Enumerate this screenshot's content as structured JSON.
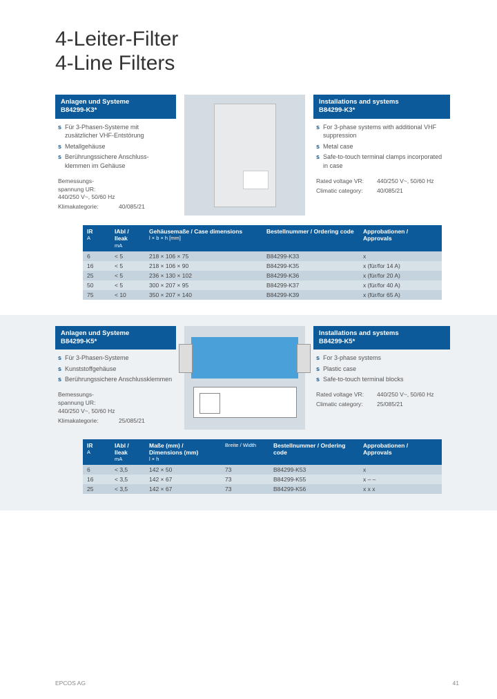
{
  "title": {
    "line1": "4-Leiter-Filter",
    "line2": "4-Line Filters"
  },
  "s1": {
    "deHdr": {
      "l1": "Anlagen und Systeme",
      "l2": "B84299-K3*"
    },
    "enHdr": {
      "l1": "Installations and systems",
      "l2": "B84299-K3*"
    },
    "deBul": [
      "Für 3-Phasen-Systeme mit zusätzlicher VHF-Entstörung",
      "Metallgehäuse",
      "Berührungssichere Anschluss-klemmen im Gehäuse"
    ],
    "enBul": [
      "For 3-phase systems with additional VHF suppression",
      "Metal case",
      "Safe-to-touch terminal clamps incorporated in case"
    ],
    "deSpec": [
      {
        "l": "Bemessungs-spannung UR:",
        "v": "440/250 V~, 50/60 Hz"
      },
      {
        "l": "Klimakategorie:",
        "v": "40/085/21"
      }
    ],
    "enSpec": [
      {
        "l": "Rated voltage VR:",
        "v": "440/250 V~, 50/60 Hz"
      },
      {
        "l": "Climatic category:",
        "v": "40/085/21"
      }
    ]
  },
  "t1": {
    "cols": [
      {
        "h": "IR",
        "s": "A",
        "w": "40"
      },
      {
        "h": "IAbl / Ileak",
        "s": "mA",
        "w": "50"
      },
      {
        "h": "Gehäusemaße / Case dimensions",
        "s": "l × b × h [mm]",
        "w": "170"
      },
      {
        "h": "Bestellnummer / Ordering code",
        "s": "",
        "w": "140"
      },
      {
        "h": "Approbationen / Approvals",
        "s": "",
        "w": "120"
      }
    ],
    "rows": [
      [
        "6",
        "< 5",
        "218 × 106 × 75",
        "B84299-K33",
        "x"
      ],
      [
        "16",
        "< 5",
        "218 × 106 × 90",
        "B84299-K35",
        "x (für/for 14 A)"
      ],
      [
        "25",
        "< 5",
        "236 × 130 × 102",
        "B84299-K36",
        "x (für/for 20 A)"
      ],
      [
        "50",
        "< 5",
        "300 × 207 × 95",
        "B84299-K37",
        "x (für/for 40 A)"
      ],
      [
        "75",
        "< 10",
        "350 × 207 × 140",
        "B84299-K39",
        "x (für/for 65 A)"
      ]
    ]
  },
  "s2": {
    "deHdr": {
      "l1": "Anlagen und Systeme",
      "l2": "B84299-K5*"
    },
    "enHdr": {
      "l1": "Installations and systems",
      "l2": "B84299-K5*"
    },
    "deBul": [
      "Für 3-Phasen-Systeme",
      "Kunststoffgehäuse",
      "Berührungssichere Anschlussklemmen"
    ],
    "enBul": [
      "For 3-phase systems",
      "Plastic case",
      "Safe-to-touch terminal blocks"
    ],
    "deSpec": [
      {
        "l": "Bemessungs-spannung UR:",
        "v": "440/250 V~, 50/60 Hz"
      },
      {
        "l": "Klimakategorie:",
        "v": "25/085/21"
      }
    ],
    "enSpec": [
      {
        "l": "Rated voltage VR:",
        "v": "440/250 V~, 50/60 Hz"
      },
      {
        "l": "Climatic category:",
        "v": "25/085/21"
      }
    ]
  },
  "t2": {
    "cols": [
      {
        "h": "IR",
        "s": "A",
        "w": "40"
      },
      {
        "h": "IAbl / Ileak",
        "s": "mA",
        "w": "50"
      },
      {
        "h": "Maße (mm) / Dimensions (mm)",
        "s": "l × h",
        "w": "110"
      },
      {
        "h": "",
        "s": "Breite / Width",
        "w": "70"
      },
      {
        "h": "Bestellnummer / Ordering code",
        "s": "",
        "w": "130"
      },
      {
        "h": "Approbationen / Approvals",
        "s": "",
        "w": "120"
      }
    ],
    "rows": [
      [
        "6",
        "< 3,5",
        "142 × 50",
        "73",
        "B84299-K53",
        "x"
      ],
      [
        "16",
        "< 3,5",
        "142 × 67",
        "73",
        "B84299-K55",
        "x   –   –"
      ],
      [
        "25",
        "< 3,5",
        "142 × 67",
        "73",
        "B84299-K56",
        "x   x   x"
      ]
    ]
  },
  "footer": {
    "l": "EPCOS AG",
    "r": "41"
  },
  "colors": {
    "hdr": "#0d5a9a",
    "row0": "#c5d3de",
    "row1": "#d7e1e8",
    "bg2": "#eef1f4"
  }
}
